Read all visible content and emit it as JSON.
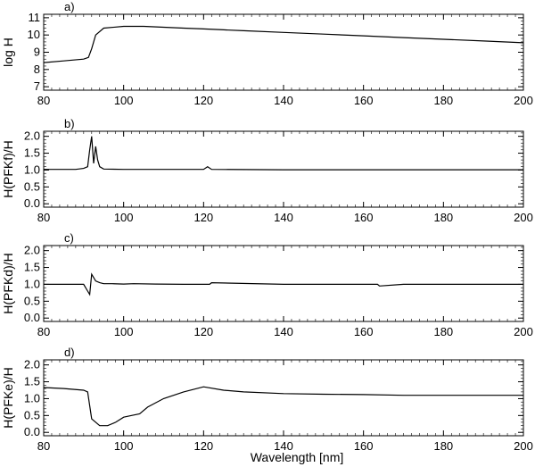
{
  "figure": {
    "xlabel": "Wavelength [nm]"
  },
  "chart_data": [
    {
      "type": "line",
      "panel_label": "a)",
      "ylabel": "log H",
      "xlim": [
        80,
        200
      ],
      "ylim": [
        6.8,
        11.2
      ],
      "x_ticks": [
        80,
        100,
        120,
        140,
        160,
        180,
        200
      ],
      "y_ticks": [
        7,
        8,
        9,
        10,
        11
      ],
      "x_ticks_labeled": true,
      "grid": false,
      "series": [
        {
          "color": "#000000",
          "x": [
            80,
            85,
            90,
            91.2,
            92,
            93,
            95,
            100,
            105,
            110,
            115,
            120,
            125,
            130,
            140,
            150,
            160,
            170,
            180,
            190,
            200
          ],
          "y": [
            8.4,
            8.5,
            8.6,
            8.7,
            9.2,
            10.0,
            10.4,
            10.5,
            10.5,
            10.45,
            10.4,
            10.35,
            10.3,
            10.25,
            10.15,
            10.05,
            9.95,
            9.85,
            9.75,
            9.65,
            9.55
          ]
        }
      ]
    },
    {
      "type": "line",
      "panel_label": "b)",
      "ylabel": "H(PFKf)/H",
      "xlim": [
        80,
        200
      ],
      "ylim": [
        -0.1,
        2.15
      ],
      "x_ticks": [
        80,
        100,
        120,
        140,
        160,
        180,
        200
      ],
      "y_ticks": [
        0.0,
        0.5,
        1.0,
        1.5,
        2.0
      ],
      "x_ticks_labeled": true,
      "grid": false,
      "series": [
        {
          "color": "#000000",
          "x": [
            80,
            88,
            90,
            91,
            91.5,
            92,
            92.5,
            93,
            93.5,
            94,
            95,
            100,
            120,
            121,
            122,
            140,
            160,
            180,
            200
          ],
          "y": [
            1.02,
            1.02,
            1.05,
            1.1,
            1.6,
            2.0,
            1.2,
            1.7,
            1.3,
            1.1,
            1.03,
            1.02,
            1.02,
            1.1,
            1.02,
            1.01,
            1.01,
            1.01,
            1.01
          ]
        }
      ]
    },
    {
      "type": "line",
      "panel_label": "c)",
      "ylabel": "H(PFKd)/H",
      "xlim": [
        80,
        200
      ],
      "ylim": [
        -0.1,
        2.15
      ],
      "x_ticks": [
        80,
        100,
        120,
        140,
        160,
        180,
        200
      ],
      "y_ticks": [
        0.0,
        0.5,
        1.0,
        1.5,
        2.0
      ],
      "x_ticks_labeled": true,
      "grid": false,
      "series": [
        {
          "color": "#000000",
          "x": [
            80,
            90,
            91,
            91.5,
            92,
            93,
            94,
            95,
            97,
            100,
            102.5,
            108,
            115,
            121.5,
            122,
            140,
            163.5,
            164,
            170,
            200
          ],
          "y": [
            1.0,
            1.0,
            0.8,
            0.7,
            1.3,
            1.1,
            1.05,
            1.02,
            1.02,
            1.01,
            1.02,
            1.01,
            1.0,
            1.0,
            1.05,
            1.0,
            1.0,
            0.95,
            1.0,
            1.0
          ]
        }
      ]
    },
    {
      "type": "line",
      "panel_label": "d)",
      "ylabel": "H(PFKe)/H",
      "xlim": [
        80,
        200
      ],
      "ylim": [
        -0.1,
        2.15
      ],
      "x_ticks": [
        80,
        100,
        120,
        140,
        160,
        180,
        200
      ],
      "y_ticks": [
        0.0,
        0.5,
        1.0,
        1.5,
        2.0
      ],
      "x_ticks_labeled": true,
      "grid": false,
      "series": [
        {
          "color": "#000000",
          "x": [
            80,
            85,
            90,
            91,
            92,
            94,
            96,
            98,
            100,
            102,
            104,
            106,
            110,
            115,
            120,
            125,
            130,
            140,
            150,
            160,
            170,
            180,
            190,
            200
          ],
          "y": [
            1.33,
            1.3,
            1.25,
            1.2,
            0.4,
            0.2,
            0.2,
            0.3,
            0.45,
            0.5,
            0.55,
            0.75,
            1.0,
            1.2,
            1.35,
            1.25,
            1.2,
            1.15,
            1.13,
            1.12,
            1.1,
            1.1,
            1.1,
            1.1
          ]
        }
      ]
    }
  ]
}
